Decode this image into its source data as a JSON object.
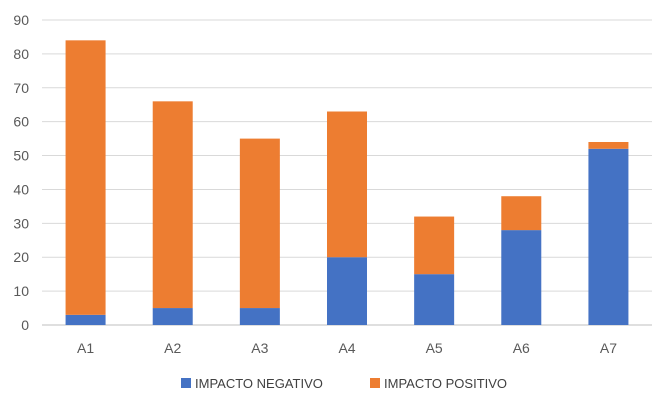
{
  "chart_data": {
    "type": "bar",
    "stacked": true,
    "title": "",
    "xlabel": "",
    "ylabel": "",
    "categories": [
      "A1",
      "A2",
      "A3",
      "A4",
      "A5",
      "A6",
      "A7"
    ],
    "series": [
      {
        "name": "IMPACTO NEGATIVO",
        "color": "#4472C4",
        "values": [
          3,
          5,
          5,
          20,
          15,
          28,
          52
        ]
      },
      {
        "name": "IMPACTO POSITIVO",
        "color": "#ED7D31",
        "values": [
          81,
          61,
          50,
          43,
          17,
          10,
          2
        ]
      }
    ],
    "ylim": [
      0,
      90
    ],
    "yticks": [
      0,
      10,
      20,
      30,
      40,
      50,
      60,
      70,
      80,
      90
    ],
    "grid": true,
    "legend_position": "bottom"
  }
}
